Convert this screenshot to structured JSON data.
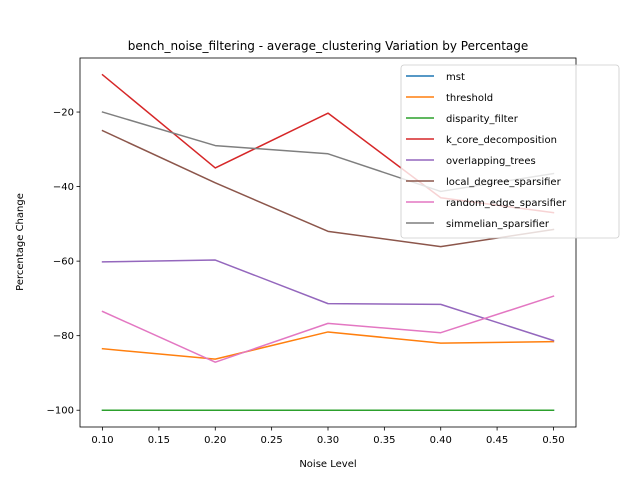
{
  "chart_data": {
    "type": "line",
    "title": "bench_noise_filtering - average_clustering Variation by Percentage",
    "xlabel": "Noise Level",
    "ylabel": "Percentage Change",
    "x": [
      0.1,
      0.2,
      0.3,
      0.4,
      0.5
    ],
    "xlim": [
      0.08,
      0.52
    ],
    "ylim": [
      -104.5,
      -5.5
    ],
    "xticks": [
      0.1,
      0.15,
      0.2,
      0.25,
      0.3,
      0.35,
      0.4,
      0.45,
      0.5
    ],
    "xtick_labels": [
      "0.10",
      "0.15",
      "0.20",
      "0.25",
      "0.30",
      "0.35",
      "0.40",
      "0.45",
      "0.50"
    ],
    "yticks": [
      -100,
      -80,
      -60,
      -40,
      -20
    ],
    "ytick_labels": [
      "−100",
      "−80",
      "−60",
      "−40",
      "−20"
    ],
    "grid": false,
    "legend_position": "top-right",
    "series": [
      {
        "name": "mst",
        "color": "#1f77b4",
        "values": [
          -100,
          -100,
          -100,
          -100,
          -100
        ]
      },
      {
        "name": "threshold",
        "color": "#ff7f0e",
        "values": [
          -83.5,
          -86.3,
          -79.0,
          -82.0,
          -81.6
        ]
      },
      {
        "name": "disparity_filter",
        "color": "#2ca02c",
        "values": [
          -100,
          -100,
          -100,
          -100,
          -100
        ]
      },
      {
        "name": "k_core_decomposition",
        "color": "#d62728",
        "values": [
          -10.0,
          -35.0,
          -20.3,
          -43.0,
          -47.0
        ]
      },
      {
        "name": "overlapping_trees",
        "color": "#9467bd",
        "values": [
          -60.2,
          -59.7,
          -71.4,
          -71.6,
          -81.3
        ]
      },
      {
        "name": "local_degree_sparsifier",
        "color": "#8c564b",
        "values": [
          -25.0,
          -39.0,
          -52.0,
          -56.1,
          -51.5
        ]
      },
      {
        "name": "random_edge_sparsifier",
        "color": "#e377c2",
        "values": [
          -73.5,
          -87.1,
          -76.7,
          -79.2,
          -69.4
        ]
      },
      {
        "name": "simmelian_sparsifier",
        "color": "#7f7f7f",
        "values": [
          -20.0,
          -29.0,
          -31.2,
          -41.3,
          -36.5
        ]
      }
    ]
  }
}
